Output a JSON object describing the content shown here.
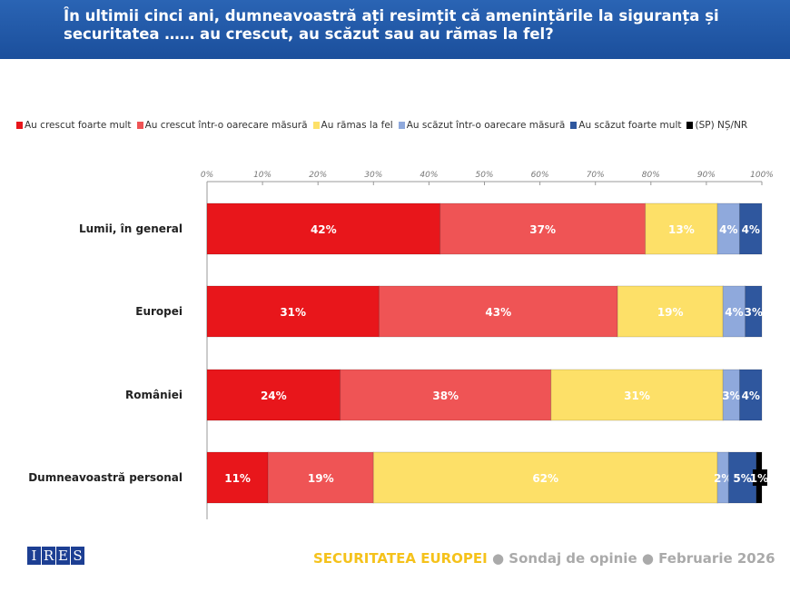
{
  "header": {
    "title": "În ultimii cinci ani, dumneavoastră ați resimțit că amenințările la siguranța și securitatea …… au crescut, au scăzut sau au rămas la fel?"
  },
  "footer": {
    "logo": "IRES",
    "survey": "SECURITATEA EUROPEI",
    "sep1": " ● ",
    "type": "Sondaj de opinie",
    "sep2": " ● ",
    "date": "Februarie 2026"
  },
  "chart_data": {
    "type": "bar",
    "orientation": "horizontal",
    "stacked": true,
    "categories": [
      "Lumii, în general",
      "Europei",
      "României",
      "Dumneavoastră personal"
    ],
    "xlim": [
      0,
      100
    ],
    "ticks": [
      "0%",
      "10%",
      "20%",
      "30%",
      "40%",
      "50%",
      "60%",
      "70%",
      "80%",
      "90%",
      "100%"
    ],
    "legend_position": "top",
    "series": [
      {
        "name": "Au crescut foarte mult",
        "color": "#e8161b",
        "values": [
          42,
          31,
          24,
          11
        ]
      },
      {
        "name": "Au crescut într-o oarecare măsură",
        "color": "#ef5455",
        "values": [
          37,
          43,
          38,
          19
        ]
      },
      {
        "name": "Au rămas la fel",
        "color": "#fde068",
        "values": [
          13,
          19,
          31,
          62
        ]
      },
      {
        "name": "Au scăzut într-o oarecare măsură",
        "color": "#8fa9dc",
        "values": [
          4,
          4,
          3,
          2
        ]
      },
      {
        "name": "Au scăzut foarte mult",
        "color": "#2f579e",
        "values": [
          4,
          3,
          4,
          5
        ]
      },
      {
        "name": "(SP) NȘ/NR",
        "color": "#000000",
        "values": [
          null,
          null,
          null,
          1
        ]
      }
    ]
  }
}
